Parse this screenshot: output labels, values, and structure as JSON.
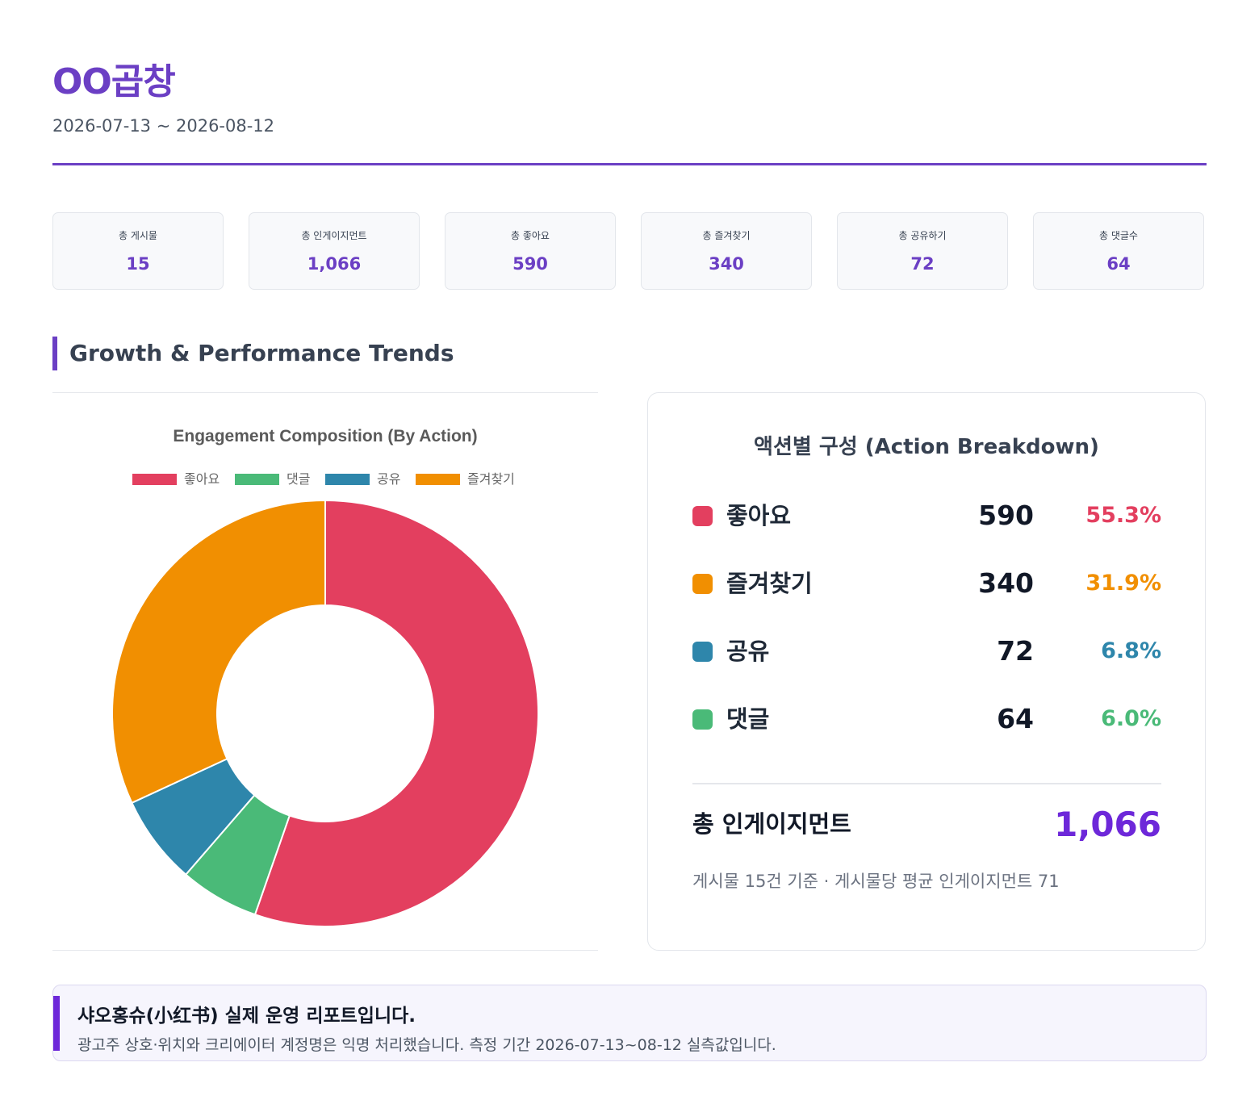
{
  "header": {
    "title": "OO곱창",
    "period": "2026-07-13 ~ 2026-08-12"
  },
  "stats": [
    {
      "label": "총 게시물",
      "value": "15"
    },
    {
      "label": "총 인게이지먼트",
      "value": "1,066"
    },
    {
      "label": "총 좋아요",
      "value": "590"
    },
    {
      "label": "총 즐겨찾기",
      "value": "340"
    },
    {
      "label": "총 공유하기",
      "value": "72"
    },
    {
      "label": "총 댓글수",
      "value": "64"
    }
  ],
  "section": {
    "title": "Growth & Performance Trends"
  },
  "chart_data": {
    "type": "pie",
    "title": "Engagement Composition (By Action)",
    "donut": true,
    "legend_position": "top",
    "categories": [
      "좋아요",
      "댓글",
      "공유",
      "즐겨찾기"
    ],
    "values": [
      590,
      64,
      72,
      340
    ],
    "colors": [
      "#e33f5f",
      "#4aba78",
      "#2e86ab",
      "#f18f01"
    ]
  },
  "breakdown": {
    "title": "액션별 구성 (Action Breakdown)",
    "rows": [
      {
        "name": "좋아요",
        "count": "590",
        "pct": "55.3%",
        "color": "#e33f5f"
      },
      {
        "name": "즐겨찾기",
        "count": "340",
        "pct": "31.9%",
        "color": "#f18f01"
      },
      {
        "name": "공유",
        "count": "72",
        "pct": "6.8%",
        "color": "#2e86ab"
      },
      {
        "name": "댓글",
        "count": "64",
        "pct": "6.0%",
        "color": "#4aba78"
      }
    ],
    "total_label": "총 인게이지먼트",
    "total_value": "1,066",
    "note": "게시물 15건 기준 · 게시물당 평균 인게이지먼트 71"
  },
  "footer": {
    "title": "샤오홍슈(小红书) 실제 운영 리포트입니다.",
    "text": "광고주 상호·위치와 크리에이터 계정명은 익명 처리했습니다. 측정 기간 2026-07-13~08-12 실측값입니다."
  }
}
